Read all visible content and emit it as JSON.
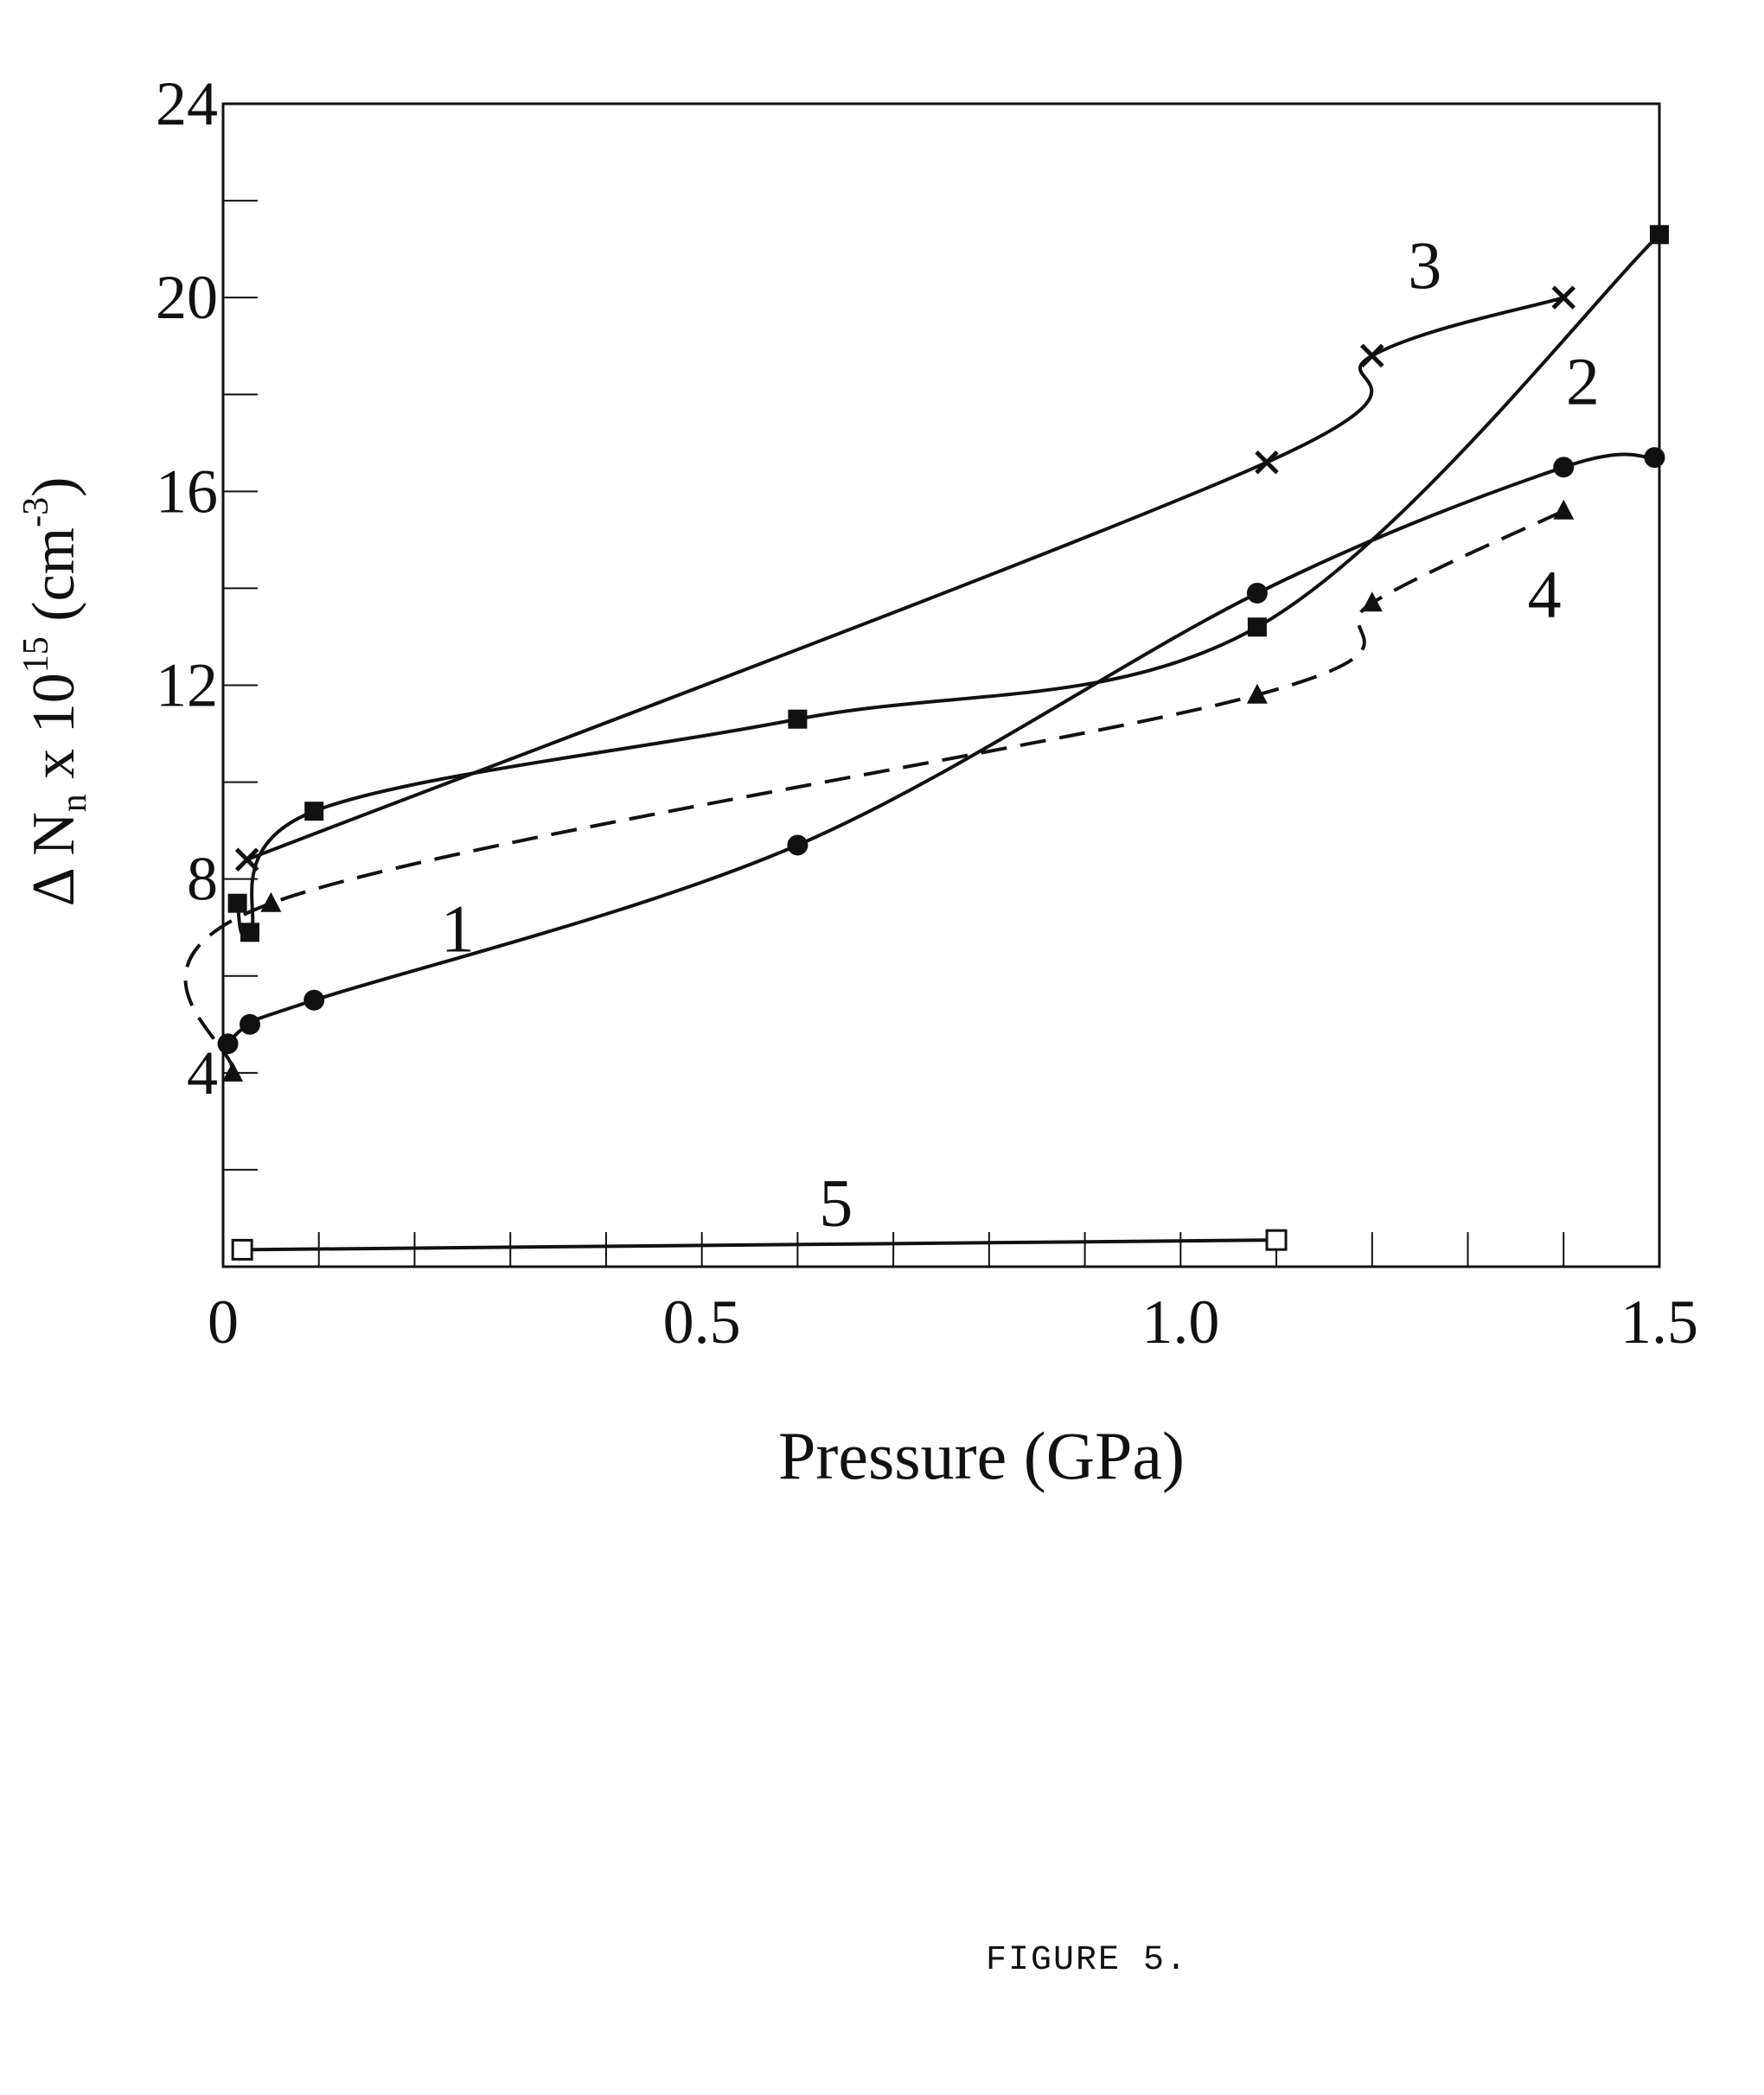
{
  "chart_data": {
    "type": "line",
    "xlabel": "Pressure (GPa)",
    "ylabel_parts": {
      "prefix": "Δ N",
      "sub": "n",
      "mid": " x 10",
      "sup": "15",
      "unit_open": "  (cm",
      "unit_sup": "-3",
      "unit_close": ")"
    },
    "x_ticks": [
      0,
      0.5,
      1.0,
      1.5
    ],
    "x_tick_labels": [
      "0",
      "0.5",
      "1.0",
      "1.5"
    ],
    "y_ticks": [
      4,
      8,
      12,
      16,
      20,
      24
    ],
    "y_tick_labels": [
      "4",
      "8",
      "12",
      "16",
      "20",
      "24"
    ],
    "xlim": [
      0,
      1.5
    ],
    "ylim": [
      0,
      24
    ],
    "grid": false,
    "series": [
      {
        "name": "1",
        "marker": "circle",
        "dashed": false,
        "x": [
          0.005,
          0.028,
          0.095,
          0.6,
          1.08,
          1.4,
          1.495
        ],
        "y": [
          4.6,
          5.0,
          5.5,
          8.7,
          13.9,
          16.5,
          16.7
        ]
      },
      {
        "name": "2",
        "marker": "square",
        "dashed": false,
        "x": [
          0.015,
          0.028,
          0.095,
          0.6,
          1.08,
          1.5
        ],
        "y": [
          7.5,
          6.9,
          9.4,
          11.3,
          13.2,
          21.3
        ]
      },
      {
        "name": "3",
        "marker": "x",
        "dashed": false,
        "x": [
          0.025,
          1.09,
          1.2,
          1.4
        ],
        "y": [
          8.4,
          16.6,
          18.8,
          20.0
        ]
      },
      {
        "name": "4",
        "marker": "triangle",
        "dashed": true,
        "x": [
          0.01,
          0.05,
          1.08,
          1.2,
          1.4
        ],
        "y": [
          4.0,
          7.5,
          11.8,
          13.7,
          15.6
        ]
      },
      {
        "name": "5",
        "marker": "open-square",
        "dashed": false,
        "x": [
          0.02,
          1.1
        ],
        "y": [
          0.35,
          0.55
        ]
      }
    ]
  },
  "caption": "FIGURE 5."
}
